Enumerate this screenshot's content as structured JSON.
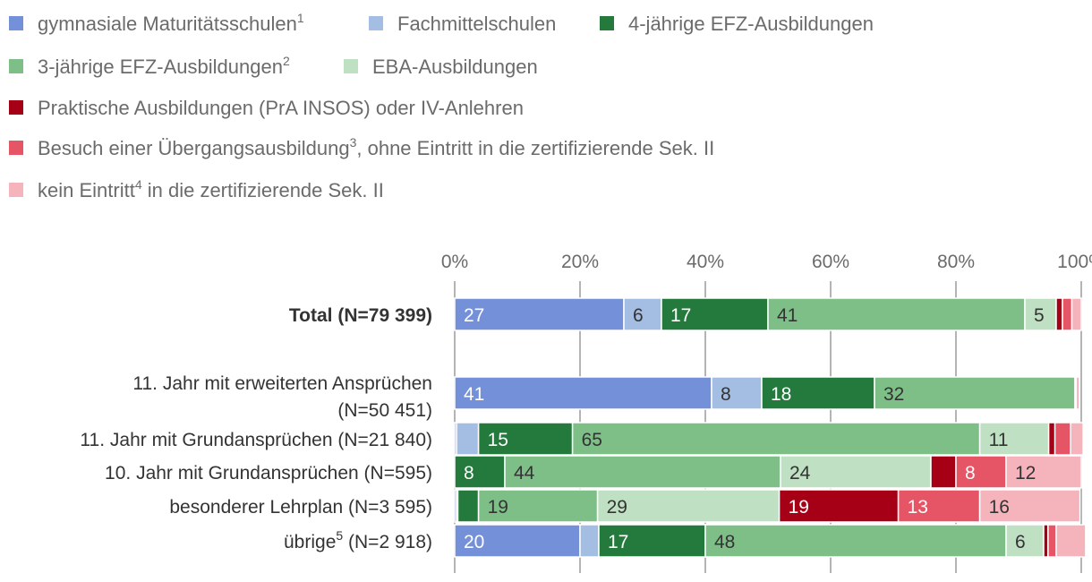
{
  "chart_data": {
    "type": "bar",
    "orientation": "horizontal",
    "stacked": true,
    "title": "",
    "xlabel": "",
    "ylabel": "",
    "xlim": [
      0,
      100
    ],
    "x_ticks": [
      "0%",
      "20%",
      "40%",
      "60%",
      "80%",
      "100%"
    ],
    "grid": true,
    "legend_position": "top",
    "legend": [
      {
        "text": "gymnasiale Maturitätsschulen",
        "sup": "1",
        "after": "",
        "color": "#7490d9"
      },
      {
        "text": "Fachmittelschulen",
        "sup": "",
        "after": "",
        "color": "#a3bde3"
      },
      {
        "text": "4-jährige EFZ-Ausbildungen",
        "sup": "",
        "after": "",
        "color": "#247a3c"
      },
      {
        "text": "3-jährige EFZ-Ausbildungen",
        "sup": "2",
        "after": "",
        "color": "#7ebf87"
      },
      {
        "text": "EBA-Ausbildungen",
        "sup": "",
        "after": "",
        "color": "#bfe0c2"
      },
      {
        "text": "Praktische Ausbildungen (PrA INSOS) oder IV-Anlehren",
        "sup": "",
        "after": "",
        "color": "#a60016"
      },
      {
        "text": "Besuch einer Übergangsausbildung",
        "sup": "3",
        "after": ", ohne Eintritt in die zertifizierende Sek. II",
        "color": "#e55565"
      },
      {
        "text": "kein Eintritt",
        "sup": "4",
        "after": " in die zertifizierende Sek. II",
        "color": "#f5b3bc"
      }
    ],
    "categories": [
      {
        "lines": [
          "Total (N=79 399)"
        ],
        "sup": "",
        "bold": true
      },
      {
        "lines": [
          "11. Jahr mit erweiterten Ansprüchen",
          "(N=50 451)"
        ],
        "sup": "",
        "bold": false
      },
      {
        "lines": [
          "11. Jahr mit Grundansprüchen (N=21 840)"
        ],
        "sup": "",
        "bold": false
      },
      {
        "lines": [
          "10. Jahr mit Grundansprüchen (N=595)"
        ],
        "sup": "",
        "bold": false
      },
      {
        "lines": [
          "besonderer Lehrplan (N=3 595)"
        ],
        "sup": "",
        "bold": false
      },
      {
        "lines": [
          "übrige",
          " (N=2 918)"
        ],
        "sup": "5",
        "bold": false
      }
    ],
    "series": [
      {
        "name": "gymnasiale Maturitätsschulen",
        "values": [
          27,
          41,
          0.3,
          0,
          0.3,
          20
        ],
        "labels": [
          "27",
          "41",
          "",
          "",
          "",
          "20"
        ]
      },
      {
        "name": "Fachmittelschulen",
        "values": [
          6,
          8,
          3.5,
          0,
          0.2,
          3
        ],
        "labels": [
          "6",
          "8",
          "",
          "",
          "",
          ""
        ]
      },
      {
        "name": "4-jährige EFZ-Ausbildungen",
        "values": [
          17,
          18,
          15,
          8,
          3.3,
          17
        ],
        "labels": [
          "17",
          "18",
          "15",
          "8",
          "",
          "17"
        ]
      },
      {
        "name": "3-jährige EFZ-Ausbildungen",
        "values": [
          41,
          32,
          65,
          44,
          19,
          48
        ],
        "labels": [
          "41",
          "32",
          "65",
          "44",
          "19",
          "48"
        ]
      },
      {
        "name": "EBA-Ausbildungen",
        "values": [
          5,
          0.2,
          11,
          24,
          29,
          6
        ],
        "labels": [
          "5",
          "",
          "11",
          "24",
          "29",
          "6"
        ]
      },
      {
        "name": "Praktische Ausbildungen (PrA INSOS) oder IV-Anlehren",
        "values": [
          1,
          0,
          1,
          4,
          19,
          0.7
        ],
        "labels": [
          "",
          "",
          "",
          "",
          "19",
          ""
        ]
      },
      {
        "name": "Besuch einer Übergangsausbildung, ohne Eintritt in die zertifizierende Sek. II",
        "values": [
          1.5,
          0,
          2.5,
          8,
          13,
          1.3
        ],
        "labels": [
          "",
          "",
          "",
          "8",
          "13",
          ""
        ]
      },
      {
        "name": "kein Eintritt in die zertifizierende Sek. II",
        "values": [
          1.5,
          0.5,
          2,
          12,
          16,
          4.7
        ],
        "labels": [
          "",
          "",
          "",
          "12",
          "16",
          ""
        ]
      }
    ],
    "label_colors": [
      "#ffffff",
      "#333333",
      "#ffffff",
      "#333333",
      "#333333",
      "#ffffff",
      "#ffffff",
      "#333333"
    ]
  }
}
